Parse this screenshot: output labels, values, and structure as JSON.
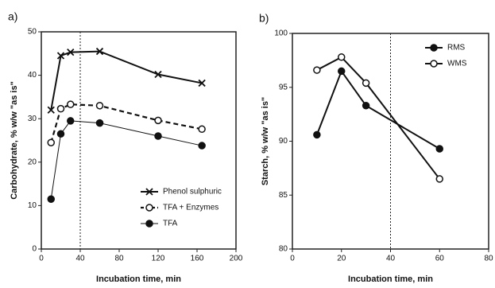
{
  "chart_data": [
    {
      "type": "line",
      "panel_label": "a)",
      "xlabel": "Incubation time, min",
      "ylabel": "Carbohydrate,  % w/w  \"as is\"",
      "x": [
        10,
        20,
        30,
        60,
        120,
        165
      ],
      "xlim": [
        0,
        200
      ],
      "xticks": [
        0,
        40,
        80,
        120,
        160,
        200
      ],
      "ylim": [
        0,
        50
      ],
      "yticks": [
        0,
        10,
        20,
        30,
        40,
        50
      ],
      "reference_x": 40,
      "legend": "lower right",
      "series": [
        {
          "name": "Phenol sulphuric",
          "color": "#111111",
          "marker": "cross",
          "dash": "solid",
          "width": 2,
          "values": [
            32,
            44.5,
            45.3,
            45.5,
            40.2,
            38.2
          ]
        },
        {
          "name": "TFA + Enzymes",
          "color": "#111111",
          "marker": "open",
          "dash": "dashed",
          "width": 2.2,
          "values": [
            24.5,
            32.3,
            33.3,
            33,
            29.6,
            27.6
          ]
        },
        {
          "name": "TFA",
          "color": "#111111",
          "marker": "filled",
          "dash": "solid",
          "width": 1,
          "values": [
            11.5,
            26.5,
            29.5,
            29,
            26,
            23.8
          ]
        }
      ]
    },
    {
      "type": "line",
      "panel_label": "b)",
      "xlabel": "Incubation time, min",
      "ylabel": "Starch,  % w/w  \"as is\"",
      "x": [
        10,
        20,
        30,
        60
      ],
      "xlim": [
        0,
        80
      ],
      "xticks": [
        0,
        20,
        40,
        60,
        80
      ],
      "ylim": [
        80,
        100
      ],
      "yticks": [
        80,
        85,
        90,
        95,
        100
      ],
      "reference_x": 40,
      "legend": "upper right",
      "series": [
        {
          "name": "RMS",
          "color": "#111111",
          "marker": "filled",
          "dash": "solid",
          "width": 2,
          "values": [
            90.6,
            96.5,
            93.3,
            89.3
          ]
        },
        {
          "name": "WMS",
          "color": "#111111",
          "marker": "open",
          "dash": "solid",
          "width": 2,
          "values": [
            96.6,
            97.8,
            95.4,
            86.5
          ]
        }
      ]
    }
  ]
}
